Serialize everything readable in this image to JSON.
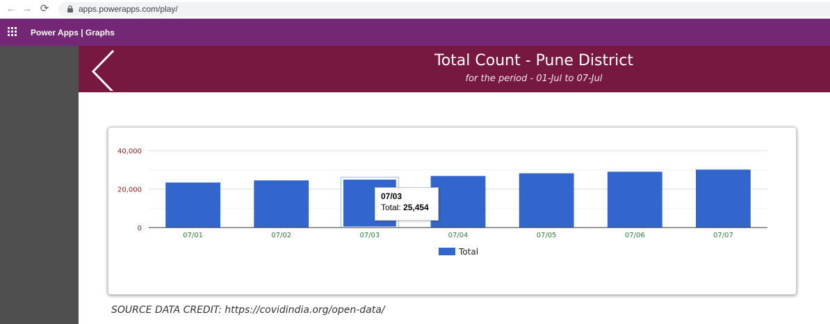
{
  "browser": {
    "url": "apps.powerapps.com/play/"
  },
  "app_header": {
    "title": "Power Apps | Graphs"
  },
  "screen": {
    "title": "Total Count - Pune District",
    "subtitle": "for the period - 01-Jul to 07-Jul",
    "credit": "SOURCE DATA CREDIT:  https://covidindia.org/open-data/"
  },
  "colors": {
    "app_header": "#742774",
    "title_bar": "#761840",
    "bar": "#3366cc",
    "y_tick": "#8b1a1a",
    "x_tick": "#2e7d32"
  },
  "tooltip": {
    "date": "07/03",
    "label": "Total:",
    "value": "25,454"
  },
  "chart_data": {
    "type": "bar",
    "categories": [
      "07/01",
      "07/02",
      "07/03",
      "07/04",
      "07/05",
      "07/06",
      "07/07"
    ],
    "series": [
      {
        "name": "Total",
        "values": [
          23400,
          24500,
          25454,
          26800,
          28200,
          29000,
          30100
        ]
      }
    ],
    "ylim": [
      0,
      40000
    ],
    "yticks": [
      0,
      20000,
      40000
    ],
    "ytick_labels": [
      "0",
      "20,000",
      "40,000"
    ],
    "grid": true,
    "legend": "bottom",
    "highlighted_category": "07/03"
  }
}
